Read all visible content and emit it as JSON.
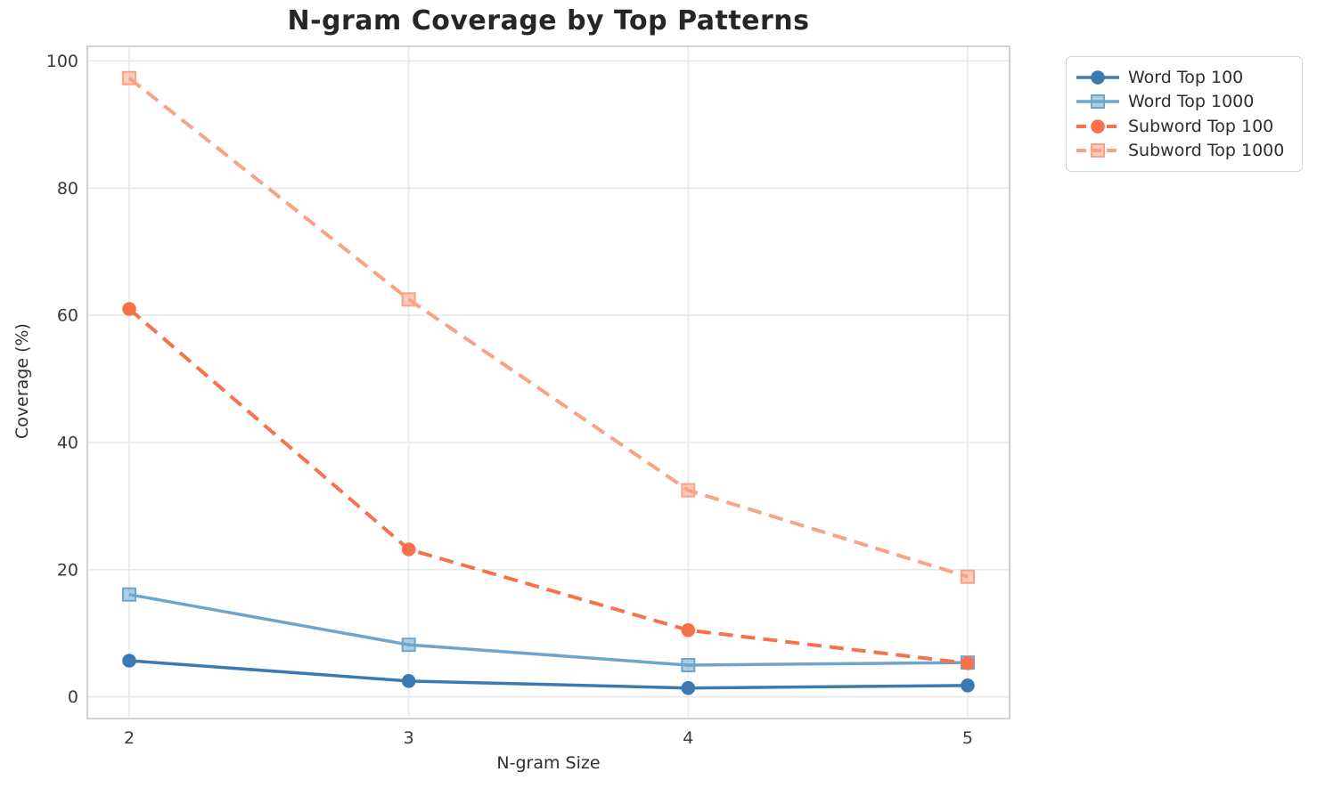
{
  "title": "N-gram Coverage by Top Patterns",
  "chart_data": {
    "type": "line",
    "title": "N-gram Coverage by Top Patterns",
    "xlabel": "N-gram Size",
    "ylabel": "Coverage (%)",
    "x": [
      2,
      3,
      4,
      5
    ],
    "xticks": [
      "2",
      "3",
      "4",
      "5"
    ],
    "yticks": [
      0,
      20,
      40,
      60,
      80,
      100
    ],
    "xlim": [
      1.85,
      5.15
    ],
    "ylim": [
      -3.4,
      102.3
    ],
    "grid": true,
    "legend_position": "outside-top-right",
    "series": [
      {
        "name": "Word Top 100",
        "values": [
          5.7,
          2.5,
          1.4,
          1.8
        ],
        "color": "#3a79b1",
        "line_style": "solid",
        "marker": "circle"
      },
      {
        "name": "Word Top 1000",
        "values": [
          16.1,
          8.2,
          5.0,
          5.4
        ],
        "color": "#6da5cd",
        "line_style": "solid",
        "marker": "square"
      },
      {
        "name": "Subword Top 100",
        "values": [
          61.0,
          23.2,
          10.5,
          5.3
        ],
        "color": "#f9714a",
        "line_style": "dashed",
        "marker": "circle"
      },
      {
        "name": "Subword Top 1000",
        "values": [
          97.3,
          62.5,
          32.5,
          18.9
        ],
        "color": "#fba284",
        "line_style": "dashed",
        "marker": "square"
      }
    ],
    "colors": {
      "grid": "#e9e9ec",
      "spine": "#cccccf",
      "tick_label": "#3a3a3a"
    }
  }
}
